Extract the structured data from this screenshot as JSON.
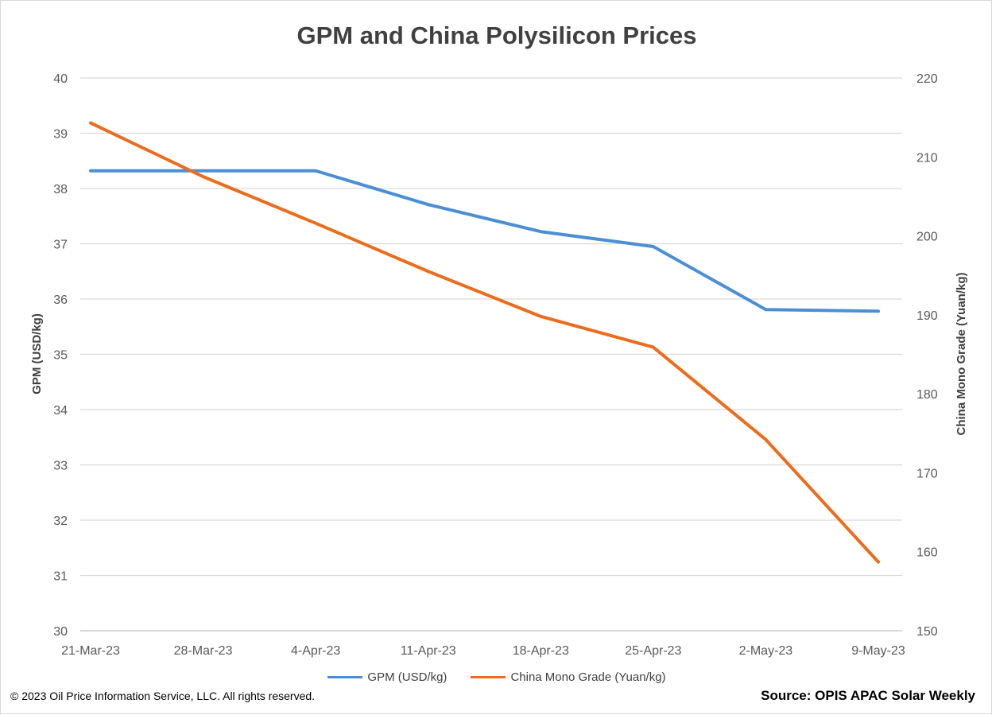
{
  "chart_data": {
    "type": "line",
    "title": "GPM and China Polysilicon Prices",
    "categories": [
      "21-Mar-23",
      "28-Mar-23",
      "4-Apr-23",
      "11-Apr-23",
      "18-Apr-23",
      "25-Apr-23",
      "2-May-23",
      "9-May-23"
    ],
    "series": [
      {
        "name": "GPM (USD/kg)",
        "axis": "left",
        "color": "#4a8fd6",
        "values": [
          38.32,
          38.32,
          38.32,
          37.71,
          37.22,
          36.95,
          35.81,
          35.78
        ]
      },
      {
        "name": "China Mono Grade (Yuan/kg)",
        "axis": "right",
        "color": "#ec6c1c",
        "values": [
          214.3,
          207.5,
          201.6,
          195.5,
          189.8,
          185.9,
          174.2,
          158.7
        ]
      }
    ],
    "ylabel": "GPM (USD/kg)",
    "y2label": "China Mono Grade  (Yuan/kg)",
    "ylim": [
      30,
      40
    ],
    "y2lim": [
      150,
      220
    ],
    "yticks": [
      30,
      31,
      32,
      33,
      34,
      35,
      36,
      37,
      38,
      39,
      40
    ],
    "y2ticks": [
      150,
      160,
      170,
      180,
      190,
      200,
      210,
      220
    ],
    "grid": true,
    "legend": "bottom"
  },
  "footer": {
    "copyright": "© 2023 Oil Price Information Service, LLC. All rights reserved.",
    "source": "Source: OPIS APAC Solar Weekly"
  }
}
